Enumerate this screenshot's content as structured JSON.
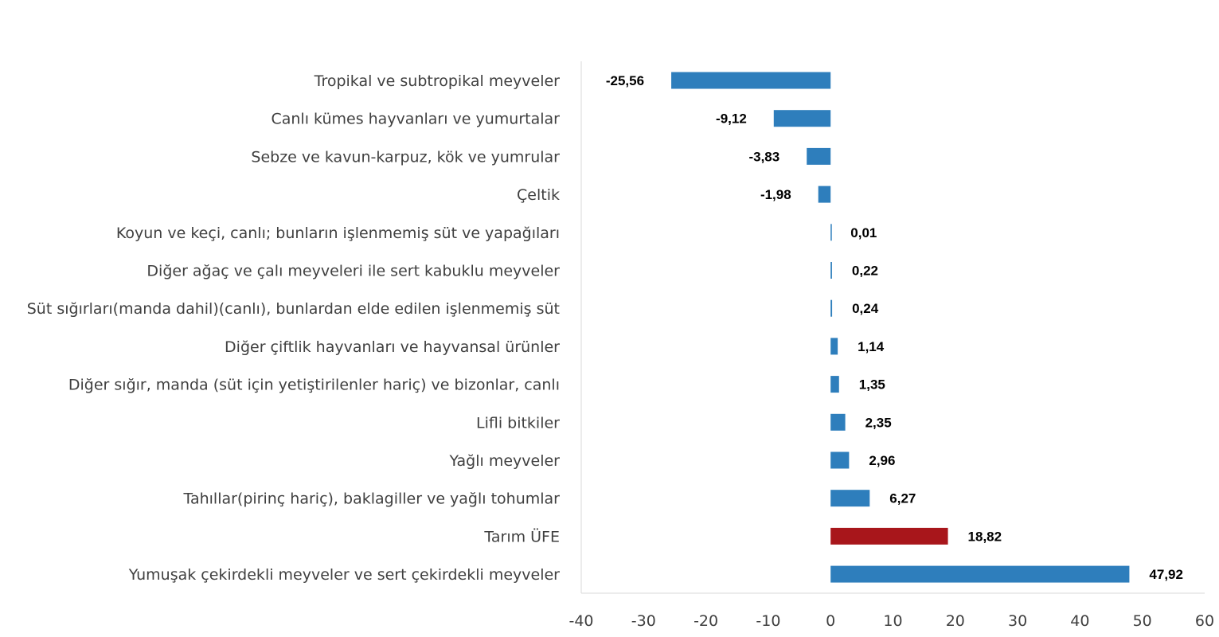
{
  "chart_data": {
    "type": "bar",
    "orientation": "horizontal",
    "categories": [
      "Tropikal ve subtropikal meyveler",
      "Canlı kümes hayvanları ve yumurtalar",
      "Sebze ve kavun-karpuz, kök ve yumrular",
      "Çeltik",
      "Koyun ve keçi, canlı; bunların işlenmemiş süt ve yapağıları",
      "Diğer ağaç ve çalı meyveleri ile sert kabuklu meyveler",
      "Süt sığırları(manda dahil)(canlı), bunlardan elde edilen işlenmemiş süt",
      "Diğer çiftlik hayvanları ve hayvansal ürünler",
      "Diğer sığır, manda (süt için yetiştirilenler hariç) ve bizonlar, canlı",
      "Lifli bitkiler",
      "Yağlı meyveler",
      "Tahıllar(pirinç hariç), baklagiller ve yağlı tohumlar",
      "Tarım ÜFE",
      "Yumuşak çekirdekli meyveler ve sert çekirdekli meyveler"
    ],
    "values": [
      -25.56,
      -9.12,
      -3.83,
      -1.98,
      0.01,
      0.22,
      0.24,
      1.14,
      1.35,
      2.35,
      2.96,
      6.27,
      18.82,
      47.92
    ],
    "value_labels": [
      "-25,56",
      "-9,12",
      "-3,83",
      "-1,98",
      "0,01",
      "0,22",
      "0,24",
      "1,14",
      "1,35",
      "2,35",
      "2,96",
      "6,27",
      "18,82",
      "47,92"
    ],
    "highlight_category": "Tarım ÜFE",
    "colors": {
      "default": "#2e7ebc",
      "highlight": "#a8161b"
    },
    "xlim": [
      -40,
      60
    ],
    "xticks": [
      -40,
      -30,
      -20,
      -10,
      0,
      10,
      20,
      30,
      40,
      50,
      60
    ],
    "xtick_labels": [
      "-40",
      "-30",
      "-20",
      "-10",
      "0",
      "10",
      "20",
      "30",
      "40",
      "50",
      "60"
    ],
    "title": "",
    "xlabel": "",
    "ylabel": "",
    "grid": false,
    "legend": "none"
  }
}
